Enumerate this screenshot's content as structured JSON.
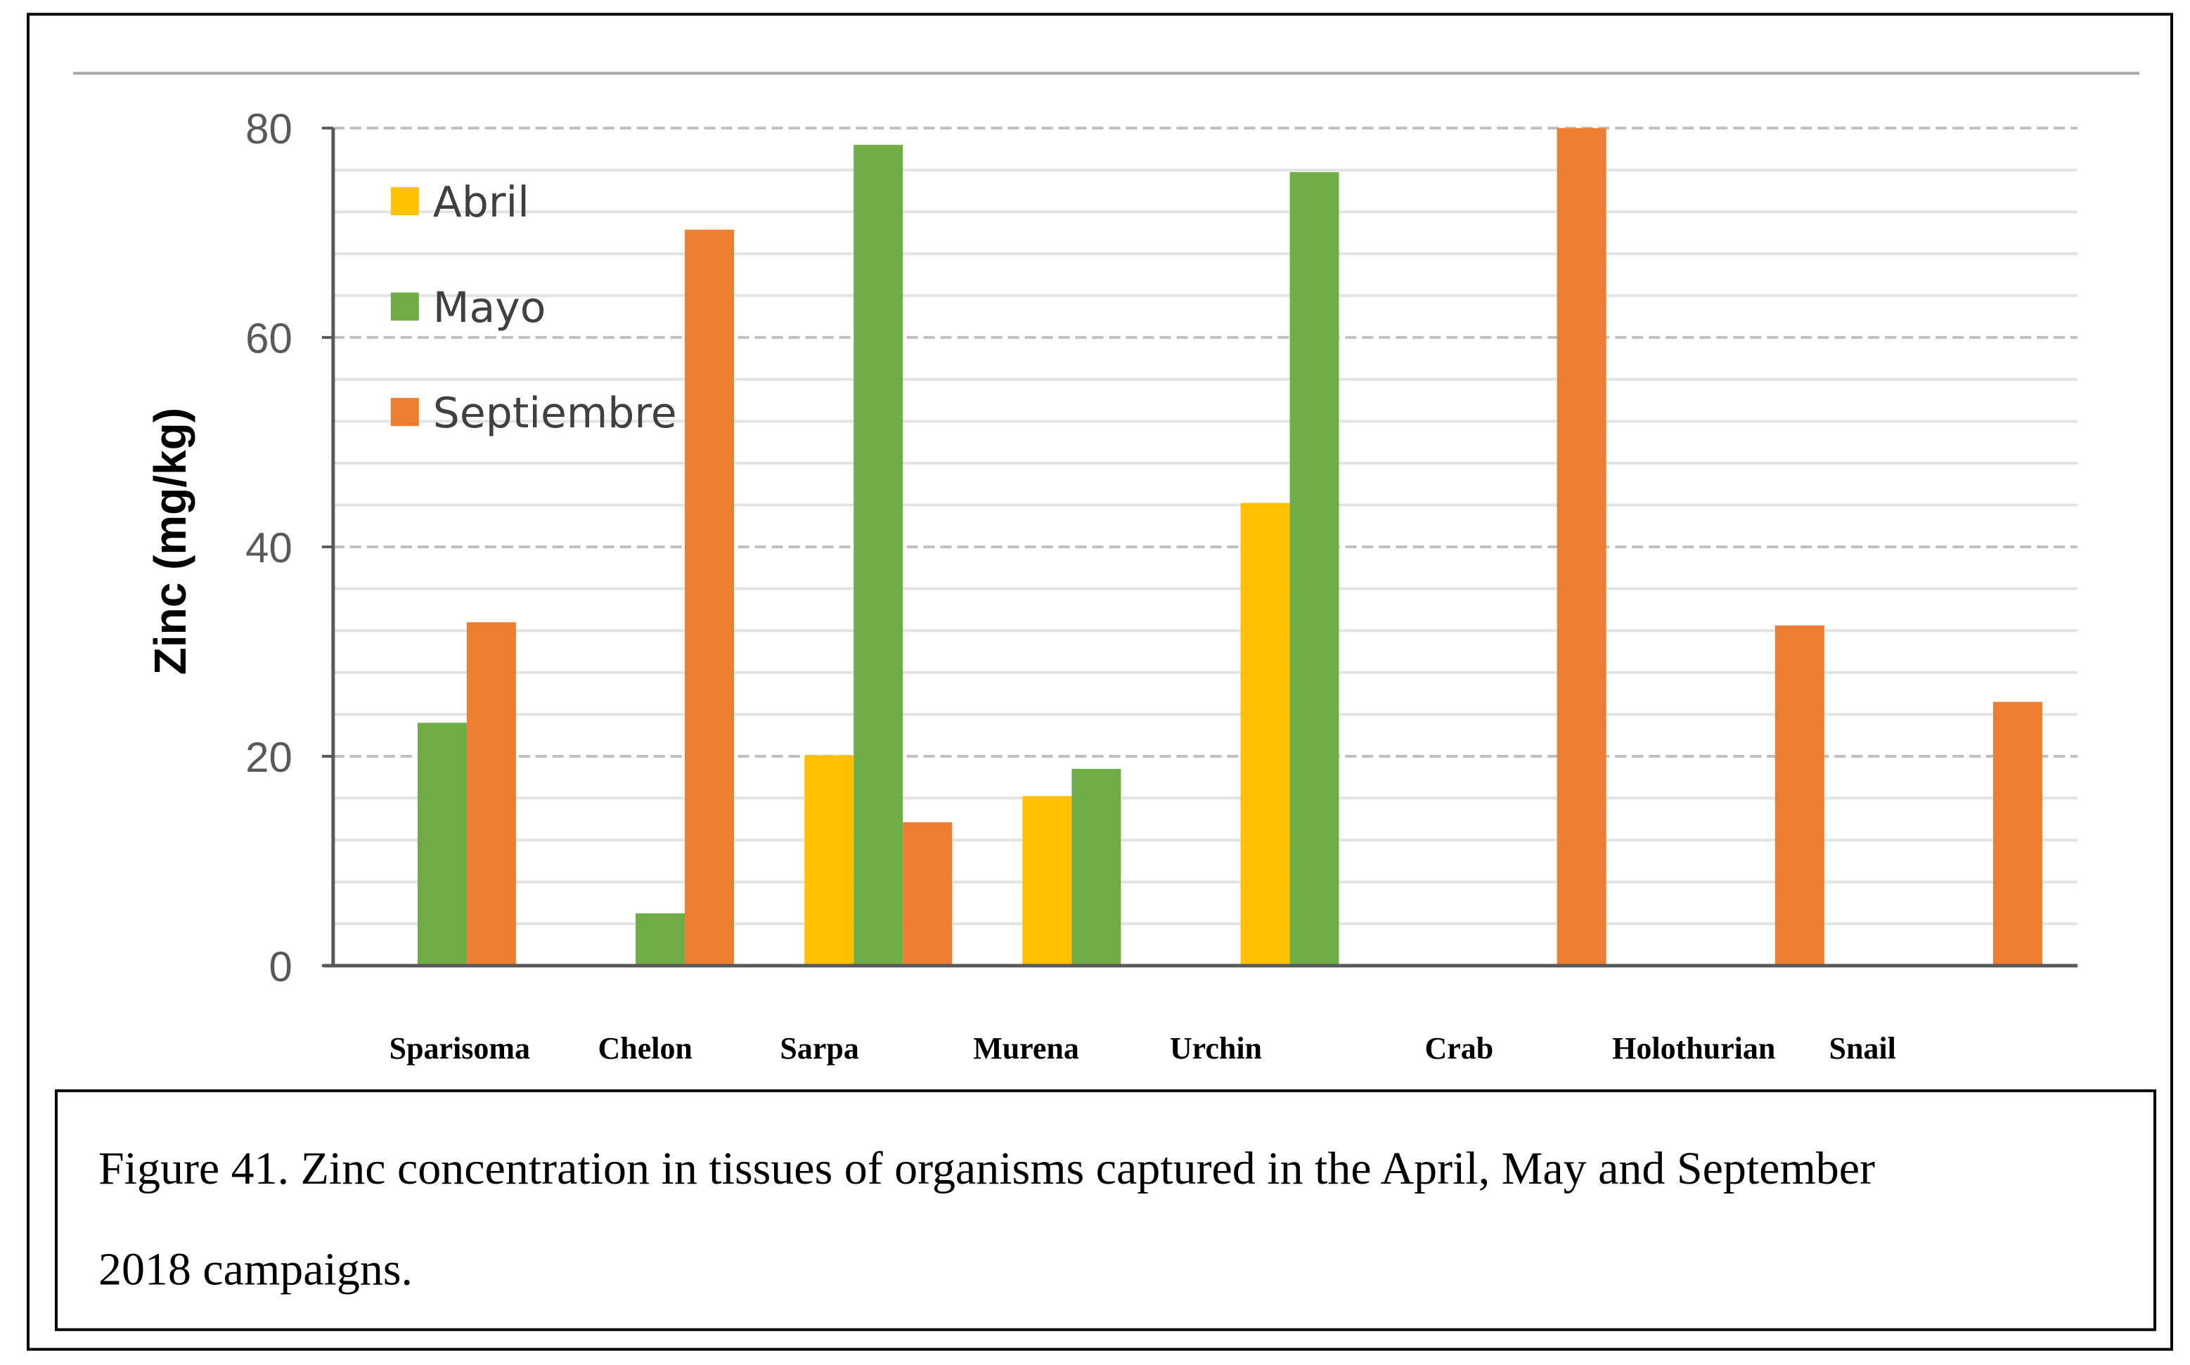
{
  "chart_data": {
    "type": "bar",
    "title": "",
    "xlabel": "",
    "ylabel": "Zinc (mg/kg)",
    "ylim": [
      0,
      80
    ],
    "yticks": [
      "0",
      "20",
      "40",
      "60",
      "80"
    ],
    "grid": true,
    "legend_position": "top-left",
    "categories": [
      "Sparisoma",
      "Chelon",
      "Sarpa",
      "Murena",
      "Urchin",
      "Crab",
      "Holothurian",
      "Snail"
    ],
    "series": [
      {
        "name": "Abril",
        "color": "#FFC000",
        "values": [
          null,
          null,
          20.1,
          16.2,
          44.2,
          null,
          null,
          null
        ]
      },
      {
        "name": "Mayo",
        "color": "#70AD47",
        "values": [
          23.2,
          5.0,
          78.4,
          18.8,
          75.8,
          null,
          null,
          null
        ]
      },
      {
        "name": "Septiembre",
        "color": "#ED7D31",
        "values": [
          32.8,
          70.3,
          13.7,
          null,
          null,
          80.0,
          32.5,
          25.2
        ]
      }
    ]
  },
  "caption": {
    "line1": "Figure 41. Zinc concentration in tissues of organisms captured in the April, May and September",
    "line2": "2018 campaigns."
  }
}
